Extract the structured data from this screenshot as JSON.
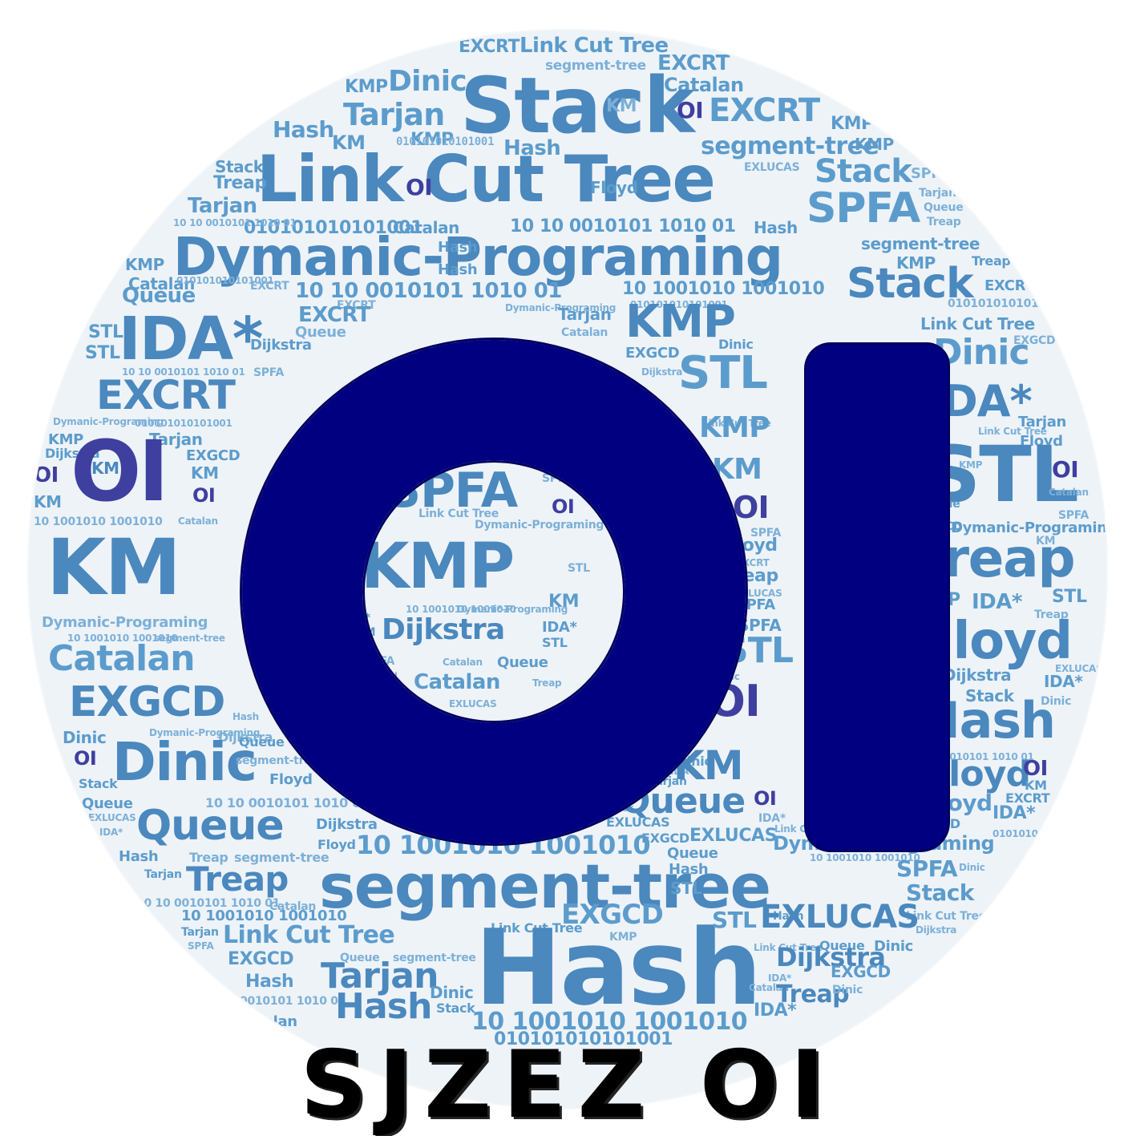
{
  "caption": "SJZEZ OI",
  "colors": {
    "disc_background": "#eef3f8",
    "word_blue": "#5c9ccc",
    "word_light_blue": "#7cb0d8",
    "word_purple": "#3f3fa0",
    "logo_navy": "#000080",
    "caption_black": "#000000"
  },
  "words": [
    "Link Cut Tree",
    "segment-tree",
    "EXCRT",
    "KMP",
    "Dinic",
    "Stack",
    "Catalan",
    "KM",
    "OI",
    "Tarjan",
    "Hash",
    "Treap",
    "Floyd",
    "SPFA",
    "010101010101001",
    "10 10 0010101 1010 01",
    "Dymanic-Programing",
    "10 1001010 1001010",
    "Queue",
    "IDA*",
    "STL",
    "Dijkstra",
    "EXLUCAS",
    "EXGCD"
  ]
}
